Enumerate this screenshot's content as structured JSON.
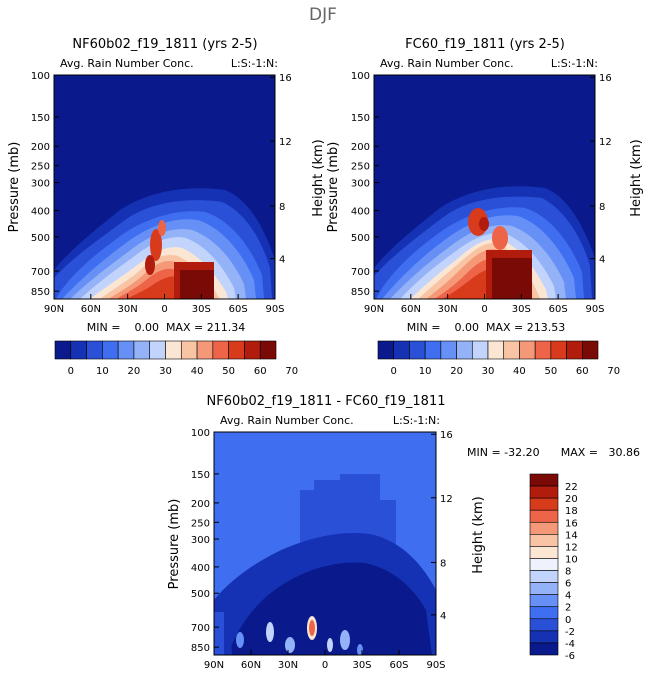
{
  "figure_title": "DJF",
  "chart_data": [
    {
      "type": "heatmap",
      "title": "NF60b02_f19_1811 (yrs 2-5)",
      "subtitle": "Avg. Rain Number Conc.",
      "corner_label": "L:S:-1:N:",
      "xlabel": "",
      "ylabel": "Pressure (mb)",
      "ylabel_right": "Height (km)",
      "x_ticks": [
        "90N",
        "60N",
        "30N",
        "0",
        "30S",
        "60S",
        "90S"
      ],
      "y_ticks": [
        "100",
        "150",
        "200",
        "250",
        "300",
        "400",
        "500",
        "700",
        "850"
      ],
      "y_ticks_right": [
        "16",
        "12",
        "8",
        "4"
      ],
      "stats": "MIN =    0.00  MAX = 211.34",
      "colorbar_ticks": [
        "0",
        "10",
        "20",
        "30",
        "40",
        "50",
        "60",
        "70"
      ]
    },
    {
      "type": "heatmap",
      "title": "FC60_f19_1811 (yrs 2-5)",
      "subtitle": "Avg. Rain Number Conc.",
      "corner_label": "L:S:-1:N:",
      "xlabel": "",
      "ylabel": "Pressure (mb)",
      "ylabel_right": "Height (km)",
      "x_ticks": [
        "90N",
        "60N",
        "30N",
        "0",
        "30S",
        "60S",
        "90S"
      ],
      "y_ticks": [
        "100",
        "150",
        "200",
        "250",
        "300",
        "400",
        "500",
        "700",
        "850"
      ],
      "y_ticks_right": [
        "16",
        "12",
        "8",
        "4"
      ],
      "stats": "MIN =    0.00  MAX = 213.53",
      "colorbar_ticks": [
        "0",
        "10",
        "20",
        "30",
        "40",
        "50",
        "60",
        "70"
      ]
    },
    {
      "type": "heatmap",
      "title": "NF60b02_f19_1811 - FC60_f19_1811",
      "subtitle": "Avg. Rain Number Conc.",
      "corner_label": "L:S:-1:N:",
      "xlabel": "",
      "ylabel": "Pressure (mb)",
      "ylabel_right": "Height (km)",
      "x_ticks": [
        "90N",
        "60N",
        "30N",
        "0",
        "30S",
        "60S",
        "90S"
      ],
      "y_ticks": [
        "100",
        "150",
        "200",
        "250",
        "300",
        "400",
        "500",
        "700",
        "850"
      ],
      "y_ticks_right": [
        "16",
        "12",
        "8",
        "4"
      ],
      "stats_min": "MIN = -32.20",
      "stats_max": "MAX =   30.86",
      "colorbar_ticks": [
        "22",
        "20",
        "18",
        "16",
        "14",
        "12",
        "10",
        "8",
        "6",
        "4",
        "2",
        "0",
        "-2",
        "-4",
        "-6"
      ]
    }
  ],
  "colors": {
    "scale12": [
      "#0a1a8c",
      "#1532b4",
      "#2a50d8",
      "#3f6ef0",
      "#6690f5",
      "#94b2f8",
      "#c2d4fb",
      "#fbe6d4",
      "#f8c4a4",
      "#f49878",
      "#ee6448",
      "#d83a1c",
      "#b11c0c",
      "#7a0a06"
    ],
    "scale3": [
      "#0a1a8c",
      "#1532b4",
      "#2a50d8",
      "#3f6ef0",
      "#6690f5",
      "#94b2f8",
      "#c2d4fb",
      "#eef2fd",
      "#fbe6d4",
      "#f8c4a4",
      "#f49878",
      "#ee6448",
      "#d83a1c",
      "#b11c0c",
      "#7a0a06"
    ]
  }
}
